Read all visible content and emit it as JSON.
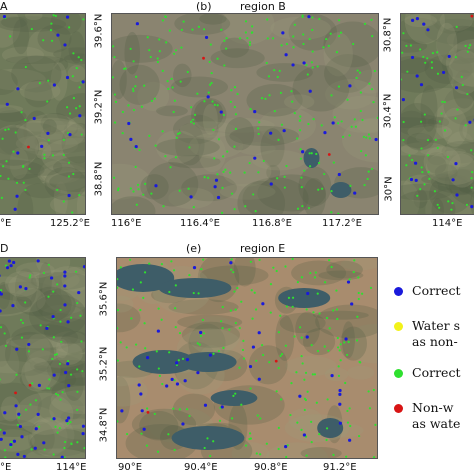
{
  "panels": {
    "a": {
      "title_suffix": "A",
      "x_ticks": [
        "°E",
        "125.2°E"
      ]
    },
    "b": {
      "tag": "(b)",
      "title": "region B",
      "y_ticks": [
        "39.6°N",
        "39.2°N",
        "38.8°N"
      ],
      "x_ticks": [
        "116°E",
        "116.4°E",
        "116.8°E",
        "117.2°E"
      ]
    },
    "c": {
      "y_ticks": [
        "30.8°N",
        "30.4°N",
        "30°N"
      ],
      "x_ticks": [
        "114°E"
      ]
    },
    "d": {
      "title_suffix": "D",
      "x_ticks": [
        "°E",
        "114°E"
      ]
    },
    "e": {
      "tag": "(e)",
      "title": "region E",
      "y_ticks": [
        "35.6°N",
        "35.2°N",
        "34.8°N"
      ],
      "x_ticks": [
        "90°E",
        "90.4°E",
        "90.8°E",
        "91.2°E"
      ]
    }
  },
  "legend": {
    "items": [
      {
        "lines": [
          "Correct"
        ],
        "color": "#1a1adb"
      },
      {
        "lines": [
          "Water s",
          "as non-"
        ],
        "color": "#f2f21a"
      },
      {
        "lines": [
          "Correct"
        ],
        "color": "#2fe02f"
      },
      {
        "lines": [
          "Non-w",
          "as wate"
        ],
        "color": "#d81414"
      }
    ]
  },
  "colors": {
    "correct_water": "#1a1adb",
    "water_as_nonwater": "#f2f21a",
    "correct_nonwater": "#2fe02f",
    "nonwater_as_water": "#d81414",
    "terrain_a": "#6f7a5a",
    "terrain_b": "#8a8470",
    "terrain_e": "#a88c6e",
    "lake": "#3e5d68"
  }
}
